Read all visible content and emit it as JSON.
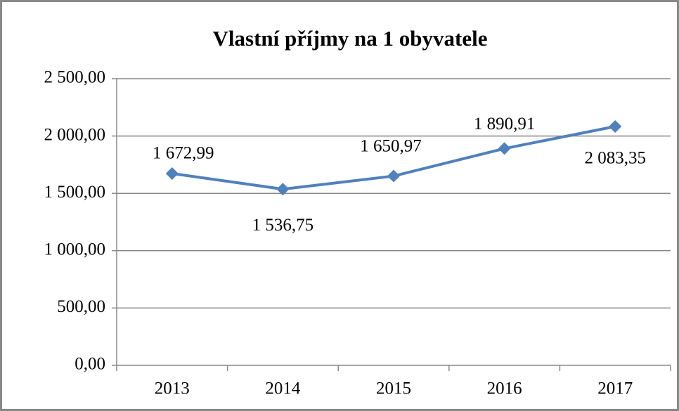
{
  "chart_data": {
    "type": "line",
    "title": "Vlastní příjmy na 1 obyvatele",
    "categories": [
      "2013",
      "2014",
      "2015",
      "2016",
      "2017"
    ],
    "series": [
      {
        "name": "Vlastní příjmy na 1 obyvatele",
        "color": "#4f81bd",
        "values": [
          1672.99,
          1536.75,
          1650.97,
          1890.91,
          2083.35
        ],
        "value_labels": [
          "1 672,99",
          "1 536,75",
          "1 650,97",
          "1 890,91",
          "2 083,35"
        ]
      }
    ],
    "ylim": [
      0,
      2500
    ],
    "yticks": [
      {
        "value": 0,
        "label": "0,00"
      },
      {
        "value": 500,
        "label": "500,00"
      },
      {
        "value": 1000,
        "label": "1 000,00"
      },
      {
        "value": 1500,
        "label": "1 500,00"
      },
      {
        "value": 2000,
        "label": "2 000,00"
      },
      {
        "value": 2500,
        "label": "2 500,00"
      }
    ],
    "grid": true
  }
}
